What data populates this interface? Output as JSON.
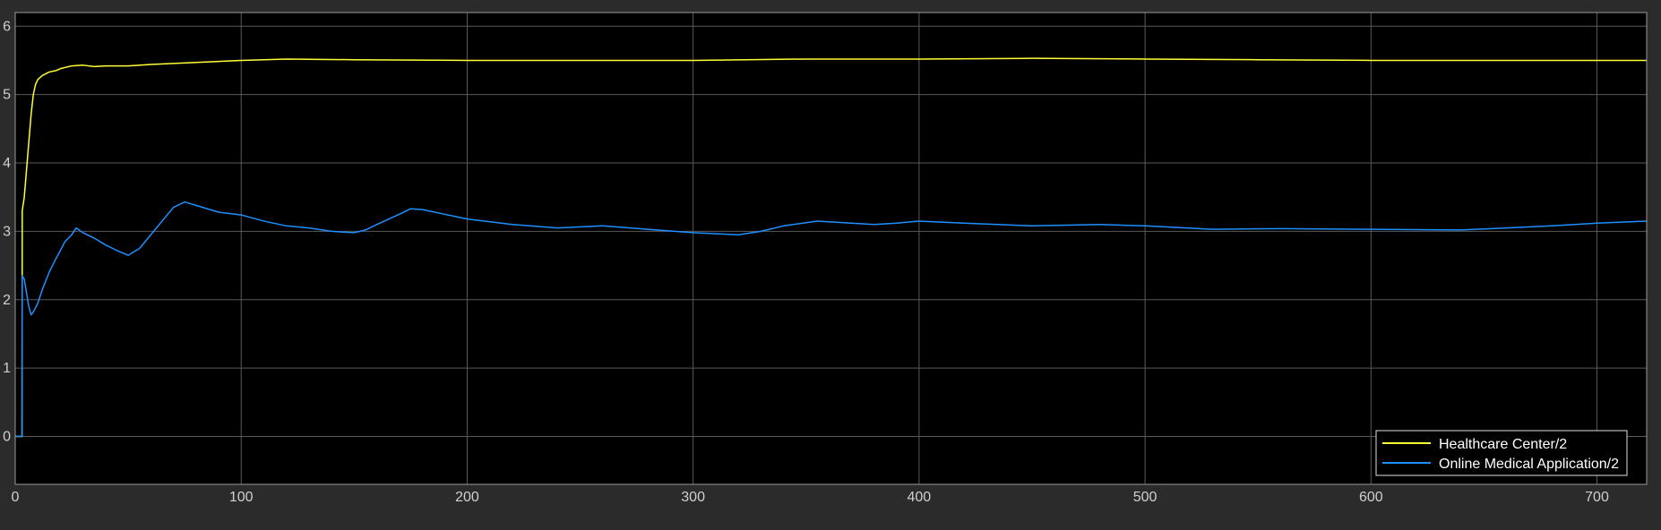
{
  "chart_data": {
    "type": "line",
    "title": "",
    "xlabel": "",
    "ylabel": "",
    "xlim": [
      0,
      722
    ],
    "ylim": [
      -0.7,
      6.2
    ],
    "x_ticks": [
      0,
      100,
      200,
      300,
      400,
      500,
      600,
      700
    ],
    "y_ticks": [
      0,
      1,
      2,
      3,
      4,
      5,
      6
    ],
    "grid": true,
    "legend_position": "bottom-right",
    "colors": {
      "figure_background": "#2b2b2b",
      "axes_background": "#000000",
      "grid": "#5a5a5a",
      "axis": "#9a9a9a"
    },
    "series": [
      {
        "name": "Healthcare Center/2",
        "color": "#ffff33",
        "x": [
          0,
          2,
          3,
          3.1,
          4,
          5,
          6,
          7,
          8,
          9,
          10,
          12,
          15,
          18,
          20,
          25,
          30,
          35,
          40,
          50,
          60,
          80,
          100,
          120,
          150,
          200,
          250,
          300,
          350,
          400,
          450,
          500,
          550,
          600,
          650,
          700,
          722
        ],
        "y": [
          0,
          0,
          0,
          3.3,
          3.5,
          3.9,
          4.3,
          4.7,
          5.0,
          5.15,
          5.22,
          5.28,
          5.33,
          5.35,
          5.38,
          5.42,
          5.43,
          5.41,
          5.42,
          5.42,
          5.44,
          5.47,
          5.5,
          5.52,
          5.51,
          5.5,
          5.5,
          5.5,
          5.52,
          5.52,
          5.53,
          5.52,
          5.51,
          5.5,
          5.5,
          5.5,
          5.5
        ]
      },
      {
        "name": "Online Medical Application/2",
        "color": "#1e90ff",
        "x": [
          0,
          2,
          3,
          3.1,
          4,
          5,
          6,
          7,
          8,
          10,
          12,
          15,
          18,
          20,
          22,
          25,
          27,
          30,
          35,
          40,
          45,
          50,
          55,
          60,
          65,
          70,
          75,
          80,
          90,
          100,
          110,
          120,
          130,
          140,
          150,
          155,
          160,
          170,
          175,
          180,
          190,
          200,
          220,
          240,
          260,
          280,
          300,
          320,
          330,
          340,
          355,
          370,
          380,
          390,
          400,
          420,
          450,
          480,
          500,
          530,
          560,
          600,
          640,
          660,
          680,
          700,
          722
        ],
        "y": [
          0,
          0,
          0,
          2.35,
          2.3,
          2.1,
          1.9,
          1.78,
          1.82,
          1.95,
          2.15,
          2.4,
          2.6,
          2.72,
          2.85,
          2.95,
          3.05,
          2.98,
          2.9,
          2.8,
          2.72,
          2.65,
          2.75,
          2.95,
          3.15,
          3.35,
          3.43,
          3.38,
          3.28,
          3.24,
          3.15,
          3.08,
          3.05,
          3.0,
          2.98,
          3.02,
          3.1,
          3.25,
          3.33,
          3.32,
          3.25,
          3.18,
          3.1,
          3.05,
          3.08,
          3.03,
          2.98,
          2.95,
          3.0,
          3.08,
          3.15,
          3.12,
          3.1,
          3.12,
          3.15,
          3.12,
          3.08,
          3.1,
          3.08,
          3.03,
          3.04,
          3.03,
          3.02,
          3.05,
          3.08,
          3.12,
          3.15
        ]
      }
    ]
  }
}
